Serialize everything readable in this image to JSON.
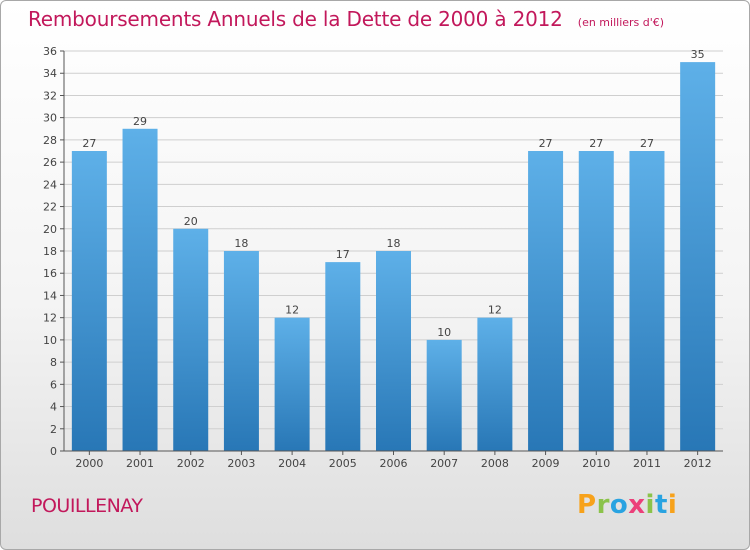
{
  "title": "Remboursements Annuels de la Dette de 2000 à 2012",
  "unit": "(en milliers d'€)",
  "commune": "POUILLENAY",
  "logo": {
    "text": "Proxiti",
    "letters": [
      {
        "ch": "P",
        "color": "#f7a21b"
      },
      {
        "ch": "r",
        "color": "#8bc34a"
      },
      {
        "ch": "o",
        "color": "#29a3e1"
      },
      {
        "ch": "x",
        "color": "#ec407a"
      },
      {
        "ch": "i",
        "color": "#8bc34a"
      },
      {
        "ch": "t",
        "color": "#29a3e1"
      },
      {
        "ch": "i",
        "color": "#f7a21b"
      }
    ]
  },
  "colors": {
    "title": "#c2185b",
    "bar_light": "#5dade6",
    "bar_dark": "#2a79b8",
    "axis": "#555555",
    "grid": "#c8c8c8"
  },
  "chart_data": {
    "type": "bar",
    "title": "Remboursements Annuels de la Dette de 2000 à 2012",
    "unit": "(en milliers d'€)",
    "categories": [
      "2000",
      "2001",
      "2002",
      "2003",
      "2004",
      "2005",
      "2006",
      "2007",
      "2008",
      "2009",
      "2010",
      "2011",
      "2012"
    ],
    "values": [
      27,
      29,
      20,
      18,
      12,
      17,
      18,
      10,
      12,
      27,
      27,
      27,
      35
    ],
    "ylim": [
      0,
      36
    ],
    "ytick_step": 2,
    "grid": true,
    "data_labels": true
  }
}
